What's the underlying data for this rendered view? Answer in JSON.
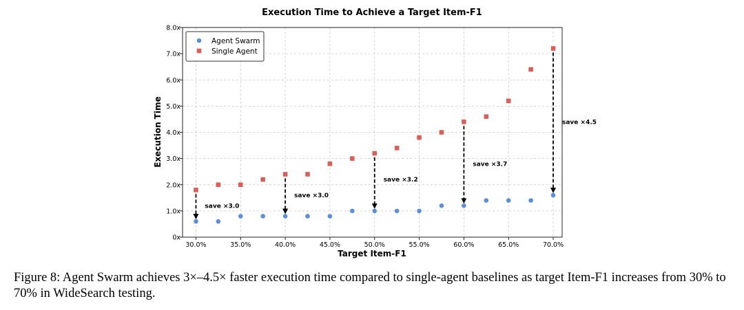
{
  "chart_data": {
    "type": "scatter",
    "title": "Execution Time to Achieve a Target Item-F1",
    "xlabel": "Target Item-F1",
    "ylabel": "Execution Time",
    "xlim": [
      28.5,
      71
    ],
    "ylim": [
      0,
      8
    ],
    "x_ticks": [
      30,
      35,
      40,
      45,
      50,
      55,
      60,
      65,
      70
    ],
    "x_tick_labels": [
      "30.0%",
      "35.0%",
      "40.0%",
      "45.0%",
      "50.0%",
      "55.0%",
      "60.0%",
      "65.0%",
      "70.0%"
    ],
    "y_ticks": [
      0,
      1,
      2,
      3,
      4,
      5,
      6,
      7,
      8
    ],
    "y_tick_labels": [
      "0x",
      "1.0x",
      "2.0x",
      "3.0x",
      "4.0x",
      "5.0x",
      "6.0x",
      "7.0x",
      "8.0x"
    ],
    "grid": true,
    "legend_position": "top-left",
    "x": [
      30,
      32.5,
      35,
      37.5,
      40,
      42.5,
      45,
      47.5,
      50,
      52.5,
      55,
      57.5,
      60,
      62.5,
      65,
      67.5,
      70
    ],
    "series": [
      {
        "name": "Agent Swarm",
        "marker": "circle",
        "color": "#5b8fd6",
        "values": [
          0.6,
          0.6,
          0.8,
          0.8,
          0.8,
          0.8,
          0.8,
          1.0,
          1.0,
          1.0,
          1.0,
          1.2,
          1.2,
          1.4,
          1.4,
          1.4,
          1.6
        ]
      },
      {
        "name": "Single Agent",
        "marker": "square",
        "color": "#d9605a",
        "values": [
          1.8,
          2.0,
          2.0,
          2.2,
          2.4,
          2.4,
          2.8,
          3.0,
          3.2,
          3.4,
          3.8,
          4.0,
          4.4,
          4.6,
          5.2,
          6.4,
          7.2
        ]
      }
    ],
    "annotations": [
      {
        "x": 30,
        "y_from": 1.8,
        "y_to": 0.6,
        "label": "save ×3.0",
        "label_x": 31.0,
        "label_y": 1.2
      },
      {
        "x": 40,
        "y_from": 2.4,
        "y_to": 0.8,
        "label": "save ×3.0",
        "label_x": 41.0,
        "label_y": 1.6
      },
      {
        "x": 50,
        "y_from": 3.2,
        "y_to": 1.0,
        "label": "save ×3.2",
        "label_x": 51.0,
        "label_y": 2.2
      },
      {
        "x": 60,
        "y_from": 4.4,
        "y_to": 1.2,
        "label": "save ×3.7",
        "label_x": 61.0,
        "label_y": 2.8
      },
      {
        "x": 70,
        "y_from": 7.2,
        "y_to": 1.6,
        "label": "save ×4.5",
        "label_x": 71.0,
        "label_y": 4.4
      }
    ]
  },
  "caption": "Figure 8: Agent Swarm achieves 3×–4.5× faster execution time compared to single-agent baselines as target Item-F1 increases from 30% to 70% in WideSearch testing."
}
